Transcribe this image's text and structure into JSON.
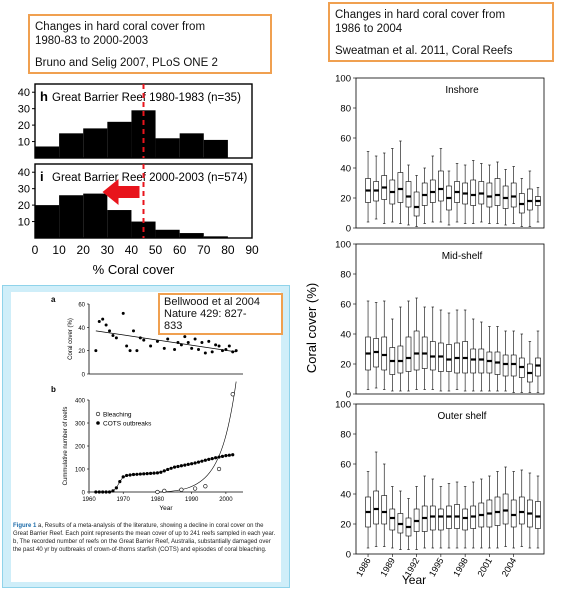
{
  "annotations": {
    "bruno_title": "Changes in hard coral cover from\n1980-83 to 2000-2003",
    "bruno_ref": "Bruno and Selig 2007, PLoS ONE 2",
    "sweatman_title": "Changes in hard coral cover from\n1986 to 2004",
    "sweatman_ref": "Sweatman et al. 2011, Coral Reefs",
    "bellwood_ref": "Bellwood et al 2004\nNature 429: 827-\n833"
  },
  "caption": {
    "lead": "Figure 1",
    "text": " a, Results of a meta-analysis of the literature, showing a decline in coral cover on the Great Barrier Reef. Each point represents the mean cover of up to 241 reefs sampled in each year. b, The recorded number of reefs on the Great Barrier Reef, Australia, substantially damaged over the past 40 yr by outbreaks of crown-of-thorns starfish (COTS) and episodes of coral bleaching."
  },
  "colors": {
    "annotation_border": "#f0a050",
    "arrow": "#e8141c",
    "dashed_line": "#e8141c",
    "panel_bg": "#cfeef9"
  },
  "chart_data": [
    {
      "type": "bar",
      "panel": "h",
      "title": "Great Barrier Reef 1980-1983 (n=35)",
      "xlabel": "% Coral cover",
      "ylabel": "",
      "categories": [
        "0-10",
        "10-20",
        "20-30",
        "30-40",
        "40-50",
        "50-60",
        "60-70",
        "70-80",
        "80-90"
      ],
      "values": [
        7,
        15,
        18,
        22,
        29,
        12,
        15,
        11,
        0
      ],
      "yticks": [
        10,
        20,
        30,
        40
      ],
      "ylim": [
        0,
        45
      ],
      "xticks": [
        0,
        10,
        20,
        30,
        40,
        50,
        60,
        70,
        80,
        90
      ],
      "marker_line": 45
    },
    {
      "type": "bar",
      "panel": "i",
      "title": "Great Barrier Reef 2000-2003 (n=574)",
      "xlabel": "% Coral cover",
      "ylabel": "",
      "categories": [
        "0-10",
        "10-20",
        "20-30",
        "30-40",
        "40-50",
        "50-60",
        "60-70",
        "70-80",
        "80-90"
      ],
      "values": [
        20,
        26,
        27,
        17,
        10,
        5,
        3,
        1,
        0
      ],
      "yticks": [
        10,
        20,
        30,
        40
      ],
      "ylim": [
        0,
        45
      ],
      "xticks": [
        0,
        10,
        20,
        30,
        40,
        50,
        60,
        70,
        80,
        90
      ],
      "marker_line": 45,
      "arrow": {
        "from": 45,
        "to": 28
      }
    },
    {
      "type": "scatter",
      "panel": "a",
      "title": "",
      "xlabel": "",
      "ylabel": "Coral cover (%)",
      "xlim": [
        1960,
        2005
      ],
      "ylim": [
        0,
        60
      ],
      "yticks": [
        0,
        20,
        40,
        60
      ],
      "x": [
        1962,
        1963,
        1964,
        1965,
        1966,
        1967,
        1968,
        1970,
        1971,
        1972,
        1973,
        1974,
        1975,
        1976,
        1978,
        1980,
        1981,
        1982,
        1983,
        1984,
        1985,
        1986,
        1987,
        1988,
        1989,
        1990,
        1991,
        1992,
        1993,
        1994,
        1995,
        1996,
        1997,
        1998,
        1999,
        2000,
        2001,
        2002,
        2003
      ],
      "y": [
        20,
        45,
        47,
        42,
        37,
        33,
        31,
        52,
        24,
        20,
        37,
        20,
        31,
        29,
        24,
        28,
        50,
        22,
        30,
        35,
        21,
        27,
        25,
        32,
        27,
        22,
        30,
        21,
        27,
        18,
        28,
        19,
        25,
        24,
        20,
        21,
        24,
        19,
        20
      ],
      "trend": {
        "x": [
          1962,
          2003
        ],
        "y": [
          37,
          19
        ]
      }
    },
    {
      "type": "line",
      "panel": "b",
      "title": "",
      "xlabel": "Year",
      "ylabel": "Cummulative number of reefs",
      "xlim": [
        1960,
        2005
      ],
      "ylim": [
        0,
        400
      ],
      "yticks": [
        0,
        100,
        200,
        300,
        400
      ],
      "xticks": [
        1960,
        1970,
        1980,
        1990,
        2000
      ],
      "series": [
        {
          "name": "Bleaching",
          "x": [
            1980,
            1982,
            1987,
            1991,
            1994,
            1998,
            2002
          ],
          "y": [
            0,
            5,
            10,
            15,
            25,
            100,
            425
          ]
        },
        {
          "name": "COTS outbreaks",
          "x": [
            1962,
            1963,
            1964,
            1965,
            1966,
            1967,
            1968,
            1969,
            1970,
            1971,
            1972,
            1973,
            1974,
            1975,
            1976,
            1977,
            1978,
            1979,
            1980,
            1981,
            1982,
            1983,
            1984,
            1985,
            1986,
            1987,
            1988,
            1989,
            1990,
            1991,
            1992,
            1993,
            1994,
            1995,
            1996,
            1997,
            1998,
            1999,
            2000,
            2001,
            2002
          ],
          "y": [
            0,
            0,
            0,
            0,
            0,
            5,
            18,
            45,
            66,
            72,
            74,
            76,
            77,
            78,
            79,
            80,
            81,
            82,
            83,
            86,
            92,
            98,
            103,
            108,
            111,
            114,
            117,
            120,
            123,
            126,
            130,
            134,
            138,
            142,
            145,
            149,
            152,
            155,
            158,
            160,
            162
          ]
        }
      ]
    },
    {
      "type": "box",
      "panel": "Inshore",
      "title": "Inshore",
      "ylabel": "Coral cover (%)",
      "xlabel": "Year",
      "ylim": [
        0,
        100
      ],
      "yticks": [
        0,
        20,
        40,
        60,
        80,
        100
      ],
      "xticks": [
        "1986",
        "1989",
        "1992",
        "1995",
        "1998",
        "2001",
        "2004"
      ],
      "boxes": [
        {
          "lo": 4,
          "q1": 17,
          "med": 25,
          "q3": 33,
          "hi": 51
        },
        {
          "lo": 6,
          "q1": 18,
          "med": 25,
          "q3": 31,
          "hi": 48
        },
        {
          "lo": 3,
          "q1": 19,
          "med": 27,
          "q3": 35,
          "hi": 50
        },
        {
          "lo": 4,
          "q1": 16,
          "med": 24,
          "q3": 32,
          "hi": 53
        },
        {
          "lo": 3,
          "q1": 17,
          "med": 26,
          "q3": 37,
          "hi": 58
        },
        {
          "lo": 2,
          "q1": 14,
          "med": 21,
          "q3": 31,
          "hi": 42
        },
        {
          "lo": 1,
          "q1": 8,
          "med": 14,
          "q3": 24,
          "hi": 35
        },
        {
          "lo": 3,
          "q1": 15,
          "med": 22,
          "q3": 30,
          "hi": 40
        },
        {
          "lo": 4,
          "q1": 17,
          "med": 24,
          "q3": 32,
          "hi": 48
        },
        {
          "lo": 4,
          "q1": 18,
          "med": 26,
          "q3": 38,
          "hi": 53
        },
        {
          "lo": 2,
          "q1": 12,
          "med": 20,
          "q3": 28,
          "hi": 38
        },
        {
          "lo": 4,
          "q1": 17,
          "med": 24,
          "q3": 31,
          "hi": 43
        },
        {
          "lo": 3,
          "q1": 16,
          "med": 23,
          "q3": 30,
          "hi": 42
        },
        {
          "lo": 3,
          "q1": 15,
          "med": 22,
          "q3": 32,
          "hi": 45
        },
        {
          "lo": 4,
          "q1": 16,
          "med": 23,
          "q3": 31,
          "hi": 43
        },
        {
          "lo": 3,
          "q1": 14,
          "med": 21,
          "q3": 30,
          "hi": 42
        },
        {
          "lo": 3,
          "q1": 15,
          "med": 22,
          "q3": 33,
          "hi": 44
        },
        {
          "lo": 2,
          "q1": 13,
          "med": 20,
          "q3": 28,
          "hi": 39
        },
        {
          "lo": 3,
          "q1": 14,
          "med": 21,
          "q3": 30,
          "hi": 41
        },
        {
          "lo": 1,
          "q1": 10,
          "med": 16,
          "q3": 23,
          "hi": 33
        },
        {
          "lo": 1,
          "q1": 12,
          "med": 18,
          "q3": 26,
          "hi": 38
        },
        {
          "lo": 4,
          "q1": 15,
          "med": 18,
          "q3": 21,
          "hi": 27
        }
      ]
    },
    {
      "type": "box",
      "panel": "Mid-shelf",
      "title": "Mid-shelf",
      "ylabel": "Coral cover (%)",
      "xlabel": "Year",
      "ylim": [
        0,
        100
      ],
      "yticks": [
        0,
        20,
        40,
        60,
        80,
        100
      ],
      "xticks": [
        "1986",
        "1989",
        "1992",
        "1995",
        "1998",
        "2001",
        "2004"
      ],
      "boxes": [
        {
          "lo": 3,
          "q1": 16,
          "med": 27,
          "q3": 38,
          "hi": 62
        },
        {
          "lo": 4,
          "q1": 18,
          "med": 28,
          "q3": 37,
          "hi": 61
        },
        {
          "lo": 3,
          "q1": 16,
          "med": 26,
          "q3": 38,
          "hi": 62
        },
        {
          "lo": 2,
          "q1": 13,
          "med": 22,
          "q3": 31,
          "hi": 50
        },
        {
          "lo": 2,
          "q1": 14,
          "med": 22,
          "q3": 32,
          "hi": 58
        },
        {
          "lo": 2,
          "q1": 15,
          "med": 24,
          "q3": 38,
          "hi": 62
        },
        {
          "lo": 3,
          "q1": 16,
          "med": 27,
          "q3": 42,
          "hi": 64
        },
        {
          "lo": 3,
          "q1": 17,
          "med": 27,
          "q3": 38,
          "hi": 58
        },
        {
          "lo": 3,
          "q1": 16,
          "med": 25,
          "q3": 35,
          "hi": 58
        },
        {
          "lo": 2,
          "q1": 15,
          "med": 25,
          "q3": 34,
          "hi": 56
        },
        {
          "lo": 2,
          "q1": 15,
          "med": 23,
          "q3": 33,
          "hi": 54
        },
        {
          "lo": 3,
          "q1": 14,
          "med": 24,
          "q3": 34,
          "hi": 56
        },
        {
          "lo": 2,
          "q1": 14,
          "med": 24,
          "q3": 35,
          "hi": 56
        },
        {
          "lo": 2,
          "q1": 14,
          "med": 23,
          "q3": 30,
          "hi": 50
        },
        {
          "lo": 2,
          "q1": 14,
          "med": 23,
          "q3": 30,
          "hi": 48
        },
        {
          "lo": 2,
          "q1": 14,
          "med": 22,
          "q3": 28,
          "hi": 45
        },
        {
          "lo": 2,
          "q1": 13,
          "med": 21,
          "q3": 28,
          "hi": 45
        },
        {
          "lo": 2,
          "q1": 12,
          "med": 20,
          "q3": 26,
          "hi": 42
        },
        {
          "lo": 1,
          "q1": 12,
          "med": 20,
          "q3": 26,
          "hi": 42
        },
        {
          "lo": 1,
          "q1": 11,
          "med": 18,
          "q3": 24,
          "hi": 40
        },
        {
          "lo": 1,
          "q1": 8,
          "med": 14,
          "q3": 20,
          "hi": 35
        },
        {
          "lo": 1,
          "q1": 12,
          "med": 19,
          "q3": 24,
          "hi": 42
        }
      ]
    },
    {
      "type": "box",
      "panel": "Outer shelf",
      "title": "Outer shelf",
      "ylabel": "Coral cover (%)",
      "xlabel": "Year",
      "ylim": [
        0,
        100
      ],
      "yticks": [
        0,
        20,
        40,
        60,
        80,
        100
      ],
      "xticks": [
        "1986",
        "1989",
        "1992",
        "1995",
        "1998",
        "2001",
        "2004"
      ],
      "boxes": [
        {
          "lo": 4,
          "q1": 18,
          "med": 28,
          "q3": 38,
          "hi": 55
        },
        {
          "lo": 5,
          "q1": 20,
          "med": 30,
          "q3": 42,
          "hi": 68
        },
        {
          "lo": 5,
          "q1": 20,
          "med": 28,
          "q3": 39,
          "hi": 60
        },
        {
          "lo": 4,
          "q1": 16,
          "med": 24,
          "q3": 30,
          "hi": 45
        },
        {
          "lo": 3,
          "q1": 14,
          "med": 20,
          "q3": 27,
          "hi": 42
        },
        {
          "lo": 3,
          "q1": 12,
          "med": 18,
          "q3": 24,
          "hi": 37
        },
        {
          "lo": 3,
          "q1": 15,
          "med": 22,
          "q3": 30,
          "hi": 45
        },
        {
          "lo": 4,
          "q1": 15,
          "med": 24,
          "q3": 32,
          "hi": 52
        },
        {
          "lo": 4,
          "q1": 16,
          "med": 25,
          "q3": 32,
          "hi": 50
        },
        {
          "lo": 4,
          "q1": 16,
          "med": 25,
          "q3": 30,
          "hi": 45
        },
        {
          "lo": 4,
          "q1": 17,
          "med": 25,
          "q3": 32,
          "hi": 47
        },
        {
          "lo": 4,
          "q1": 17,
          "med": 25,
          "q3": 33,
          "hi": 48
        },
        {
          "lo": 4,
          "q1": 16,
          "med": 24,
          "q3": 30,
          "hi": 45
        },
        {
          "lo": 4,
          "q1": 17,
          "med": 25,
          "q3": 32,
          "hi": 48
        },
        {
          "lo": 4,
          "q1": 18,
          "med": 26,
          "q3": 34,
          "hi": 50
        },
        {
          "lo": 4,
          "q1": 18,
          "med": 27,
          "q3": 36,
          "hi": 52
        },
        {
          "lo": 4,
          "q1": 19,
          "med": 28,
          "q3": 38,
          "hi": 55
        },
        {
          "lo": 5,
          "q1": 20,
          "med": 29,
          "q3": 40,
          "hi": 58
        },
        {
          "lo": 4,
          "q1": 18,
          "med": 26,
          "q3": 36,
          "hi": 55
        },
        {
          "lo": 5,
          "q1": 20,
          "med": 28,
          "q3": 38,
          "hi": 56
        },
        {
          "lo": 4,
          "q1": 18,
          "med": 27,
          "q3": 36,
          "hi": 54
        },
        {
          "lo": 4,
          "q1": 17,
          "med": 25,
          "q3": 35,
          "hi": 52
        }
      ]
    }
  ],
  "labels": {
    "panel_h_letter": "h",
    "panel_i_letter": "i",
    "panel_a_letter": "a",
    "panel_b_letter": "b"
  }
}
